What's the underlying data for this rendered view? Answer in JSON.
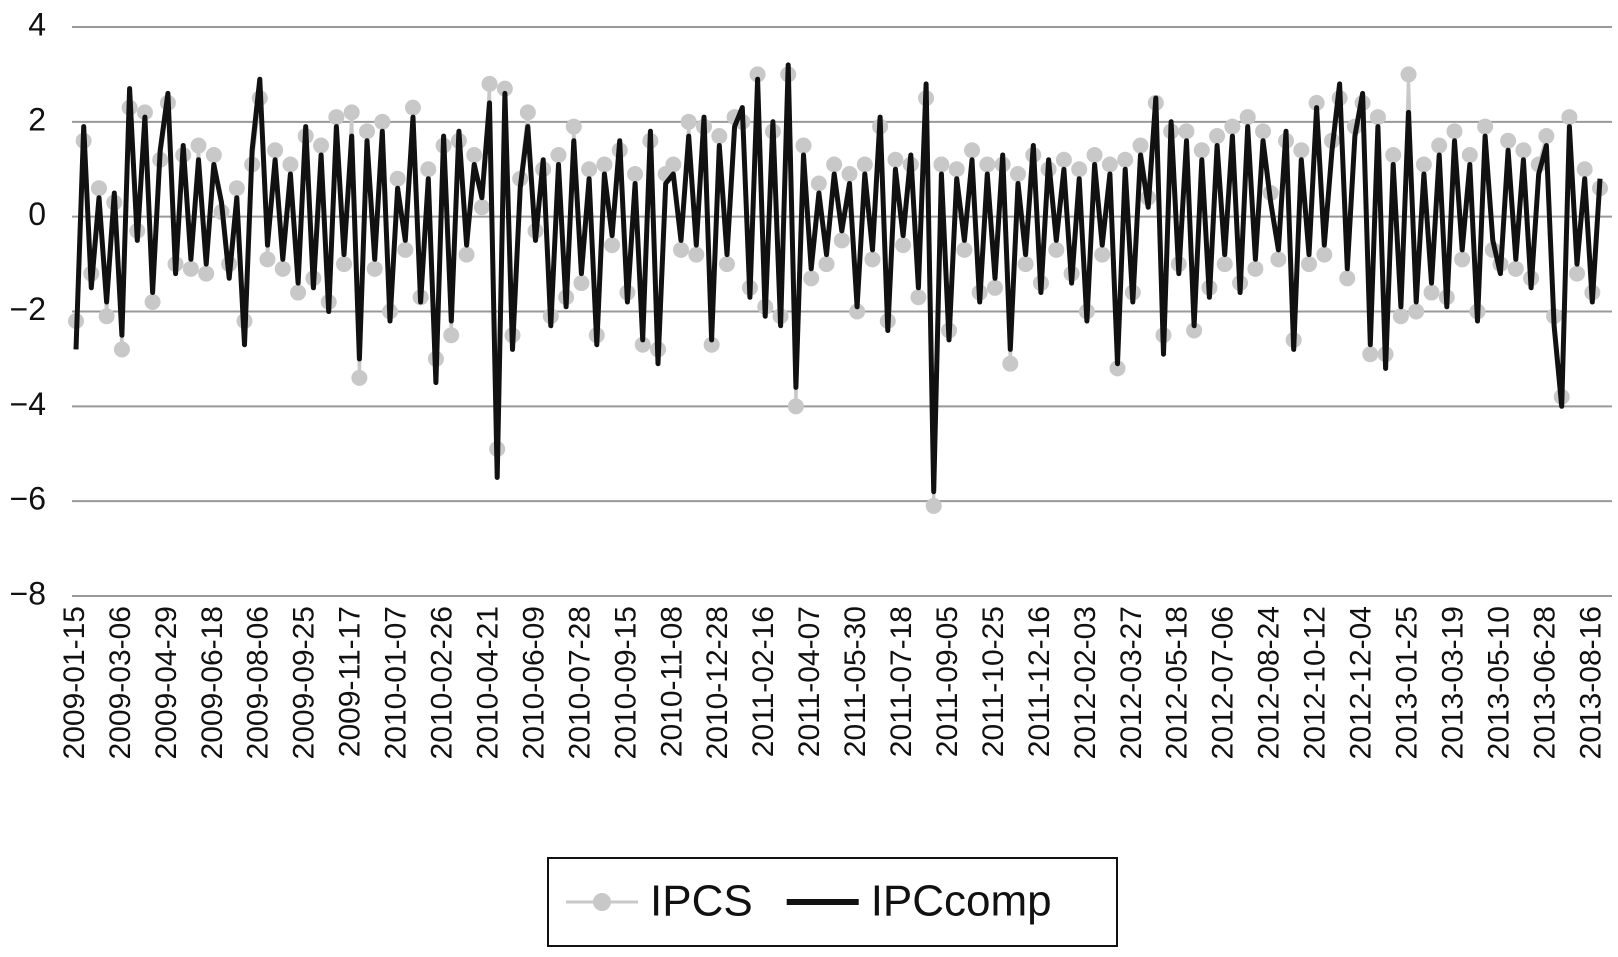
{
  "chart_data": {
    "type": "line",
    "categories": [
      "2009-01-15",
      null,
      null,
      null,
      null,
      null,
      "2009-03-06",
      null,
      null,
      null,
      null,
      null,
      "2009-04-29",
      null,
      null,
      null,
      null,
      null,
      "2009-06-18",
      null,
      null,
      null,
      null,
      null,
      "2009-08-06",
      null,
      null,
      null,
      null,
      null,
      "2009-09-25",
      null,
      null,
      null,
      null,
      null,
      "2009-11-17",
      null,
      null,
      null,
      null,
      null,
      "2010-01-07",
      null,
      null,
      null,
      null,
      null,
      "2010-02-26",
      null,
      null,
      null,
      null,
      null,
      "2010-04-21",
      null,
      null,
      null,
      null,
      null,
      "2010-06-09",
      null,
      null,
      null,
      null,
      null,
      "2010-07-28",
      null,
      null,
      null,
      null,
      null,
      "2010-09-15",
      null,
      null,
      null,
      null,
      null,
      "2010-11-08",
      null,
      null,
      null,
      null,
      null,
      "2010-12-28",
      null,
      null,
      null,
      null,
      null,
      "2011-02-16",
      null,
      null,
      null,
      null,
      null,
      "2011-04-07",
      null,
      null,
      null,
      null,
      null,
      "2011-05-30",
      null,
      null,
      null,
      null,
      null,
      "2011-07-18",
      null,
      null,
      null,
      null,
      null,
      "2011-09-05",
      null,
      null,
      null,
      null,
      null,
      "2011-10-25",
      null,
      null,
      null,
      null,
      null,
      "2011-12-16",
      null,
      null,
      null,
      null,
      null,
      "2012-02-03",
      null,
      null,
      null,
      null,
      null,
      "2012-03-27",
      null,
      null,
      null,
      null,
      null,
      "2012-05-18",
      null,
      null,
      null,
      null,
      null,
      "2012-07-06",
      null,
      null,
      null,
      null,
      null,
      "2012-08-24",
      null,
      null,
      null,
      null,
      null,
      "2012-10-12",
      null,
      null,
      null,
      null,
      null,
      "2012-12-04",
      null,
      null,
      null,
      null,
      null,
      "2013-01-25",
      null,
      null,
      null,
      null,
      null,
      "2013-03-19",
      null,
      null,
      null,
      null,
      null,
      "2013-05-10",
      null,
      null,
      null,
      null,
      null,
      "2013-06-28",
      null,
      null,
      null,
      null,
      null,
      "2013-08-16",
      null
    ],
    "series": [
      {
        "name": "IPCS",
        "color": "#c8c8c8",
        "marker": "circle",
        "values": [
          -2.2,
          1.6,
          -1.2,
          0.6,
          -2.1,
          0.3,
          -2.8,
          2.3,
          -0.3,
          2.2,
          -1.8,
          1.2,
          2.4,
          -1.0,
          1.3,
          -1.1,
          1.5,
          -1.2,
          1.3,
          0.1,
          -1.0,
          0.6,
          -2.2,
          1.1,
          2.5,
          -0.9,
          1.4,
          -1.1,
          1.1,
          -1.6,
          1.7,
          -1.3,
          1.5,
          -1.8,
          2.1,
          -1.0,
          2.2,
          -3.4,
          1.8,
          -1.1,
          2.0,
          -2.0,
          0.8,
          -0.7,
          2.3,
          -1.7,
          1.0,
          -3.0,
          1.5,
          -2.5,
          1.6,
          -0.8,
          1.3,
          0.2,
          2.8,
          -4.9,
          2.7,
          -2.5,
          0.8,
          2.2,
          -0.3,
          1.0,
          -2.1,
          1.3,
          -1.7,
          1.9,
          -1.4,
          1.0,
          -2.5,
          1.1,
          -0.6,
          1.4,
          -1.6,
          0.9,
          -2.7,
          1.6,
          -2.8,
          0.9,
          1.1,
          -0.7,
          2.0,
          -0.8,
          1.9,
          -2.7,
          1.7,
          -1.0,
          2.1,
          2.0,
          -1.5,
          3.0,
          -1.9,
          1.8,
          -2.1,
          3.0,
          -4.0,
          1.5,
          -1.3,
          0.7,
          -1.0,
          1.1,
          -0.5,
          0.9,
          -2.0,
          1.1,
          -0.9,
          1.9,
          -2.2,
          1.2,
          -0.6,
          1.1,
          -1.7,
          2.5,
          -6.1,
          1.1,
          -2.4,
          1.0,
          -0.7,
          1.4,
          -1.6,
          1.1,
          -1.5,
          1.1,
          -3.1,
          0.9,
          -1.0,
          1.3,
          -1.4,
          1.0,
          -0.7,
          1.2,
          -1.2,
          1.0,
          -2.0,
          1.3,
          -0.8,
          1.1,
          -3.2,
          1.2,
          -1.6,
          1.5,
          0.4,
          2.4,
          -2.5,
          1.8,
          -1.0,
          1.8,
          -2.4,
          1.4,
          -1.5,
          1.7,
          -1.0,
          1.9,
          -1.4,
          2.1,
          -1.1,
          1.8,
          0.5,
          -0.9,
          1.6,
          -2.6,
          1.4,
          -1.0,
          2.4,
          -0.8,
          1.6,
          2.5,
          -1.3,
          1.9,
          2.4,
          -2.9,
          2.1,
          -2.9,
          1.3,
          -2.1,
          3.0,
          -2.0,
          1.1,
          -1.6,
          1.5,
          -1.7,
          1.8,
          -0.9,
          1.3,
          -2.0,
          1.9,
          -0.7,
          -1.0,
          1.6,
          -1.1,
          1.4,
          -1.3,
          1.1,
          1.7,
          -2.1,
          -3.8,
          2.1,
          -1.2,
          1.0,
          -1.6,
          0.6
        ]
      },
      {
        "name": "IPCcomp",
        "color": "#111111",
        "values": [
          -2.8,
          1.9,
          -1.5,
          0.4,
          -1.8,
          0.5,
          -2.5,
          2.7,
          -0.5,
          2.1,
          -1.6,
          1.4,
          2.6,
          -1.2,
          1.5,
          -0.9,
          1.2,
          -1.0,
          1.1,
          0.3,
          -1.3,
          0.4,
          -2.7,
          1.4,
          2.9,
          -0.6,
          1.2,
          -0.9,
          0.9,
          -1.4,
          1.9,
          -1.5,
          1.3,
          -2.0,
          1.9,
          -0.8,
          1.7,
          -3.0,
          1.6,
          -0.9,
          1.8,
          -2.2,
          0.6,
          -0.5,
          2.1,
          -1.8,
          0.8,
          -3.5,
          1.7,
          -2.2,
          1.8,
          -0.6,
          1.1,
          0.4,
          2.4,
          -5.5,
          2.6,
          -2.8,
          0.6,
          1.9,
          -0.5,
          1.2,
          -2.3,
          1.1,
          -1.9,
          1.6,
          -1.2,
          0.8,
          -2.7,
          0.9,
          -0.4,
          1.6,
          -1.8,
          0.7,
          -2.6,
          1.8,
          -3.1,
          0.7,
          0.9,
          -0.5,
          1.7,
          -0.6,
          2.1,
          -2.6,
          1.5,
          -0.8,
          1.9,
          2.3,
          -1.7,
          2.9,
          -2.1,
          2.0,
          -2.3,
          3.2,
          -3.6,
          1.3,
          -1.1,
          0.5,
          -0.8,
          0.9,
          -0.3,
          0.7,
          -1.9,
          0.9,
          -0.7,
          2.1,
          -2.4,
          1.0,
          -0.4,
          1.3,
          -1.5,
          2.8,
          -5.8,
          0.9,
          -2.6,
          0.8,
          -0.5,
          1.2,
          -1.8,
          0.9,
          -1.3,
          1.3,
          -2.8,
          0.7,
          -0.8,
          1.5,
          -1.6,
          1.2,
          -0.5,
          1.0,
          -1.4,
          0.8,
          -2.2,
          1.1,
          -0.6,
          0.9,
          -3.1,
          1.0,
          -1.8,
          1.3,
          0.2,
          2.5,
          -2.9,
          2.0,
          -1.2,
          1.6,
          -2.3,
          1.2,
          -1.7,
          1.5,
          -0.8,
          1.7,
          -1.6,
          1.9,
          -0.9,
          1.6,
          0.3,
          -0.7,
          1.8,
          -2.8,
          1.2,
          -0.8,
          2.3,
          -0.6,
          1.4,
          2.8,
          -1.1,
          1.7,
          2.6,
          -2.7,
          1.9,
          -3.2,
          1.1,
          -1.9,
          2.2,
          -1.8,
          0.9,
          -1.4,
          1.3,
          -1.9,
          1.6,
          -0.7,
          1.1,
          -2.2,
          1.7,
          -0.5,
          -1.2,
          1.4,
          -0.9,
          1.2,
          -1.5,
          0.9,
          1.5,
          -2.3,
          -4.0,
          1.9,
          -1.0,
          0.8,
          -1.8,
          0.8
        ]
      }
    ],
    "ylim": [
      -8,
      4
    ],
    "yticks": [
      {
        "value": -8,
        "label": "−8"
      },
      {
        "value": -6,
        "label": "−6"
      },
      {
        "value": -4,
        "label": "−4"
      },
      {
        "value": -2,
        "label": "−2"
      },
      0,
      2,
      4
    ],
    "grid": true,
    "grid_color": "#999999",
    "legend": "bottom"
  }
}
